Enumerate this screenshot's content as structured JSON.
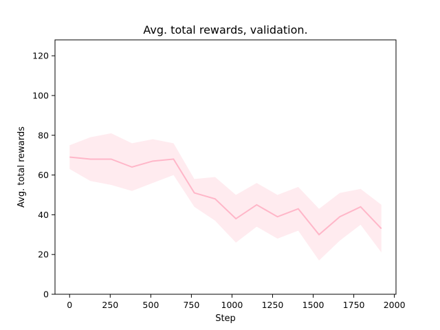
{
  "chart_data": {
    "type": "line",
    "title": "Avg. total rewards, validation.",
    "xlabel": "Step",
    "ylabel": "Avg. total rewards",
    "xlim": [
      -90,
      2010
    ],
    "ylim": [
      0,
      128
    ],
    "x_ticks": [
      0,
      250,
      500,
      750,
      1000,
      1250,
      1500,
      1750,
      2000
    ],
    "y_ticks": [
      0,
      20,
      40,
      60,
      80,
      100,
      120
    ],
    "grid": false,
    "legend": "none",
    "colors": {
      "line": "#ffb6c8",
      "band": "#ffe4ea"
    },
    "series": [
      {
        "x": [
          0,
          128,
          256,
          384,
          512,
          640,
          768,
          896,
          1024,
          1152,
          1280,
          1408,
          1536,
          1664,
          1792,
          1920
        ],
        "values": [
          69,
          68,
          68,
          64,
          67,
          68,
          51,
          48,
          38,
          45,
          39,
          43,
          30,
          39,
          44,
          33
        ],
        "lower": [
          63,
          57,
          55,
          52,
          56,
          60,
          44,
          37,
          26,
          34,
          28,
          32,
          17,
          27,
          35,
          21
        ],
        "upper": [
          75,
          79,
          81,
          76,
          78,
          76,
          58,
          59,
          50,
          56,
          50,
          54,
          43,
          51,
          53,
          45
        ]
      }
    ]
  }
}
